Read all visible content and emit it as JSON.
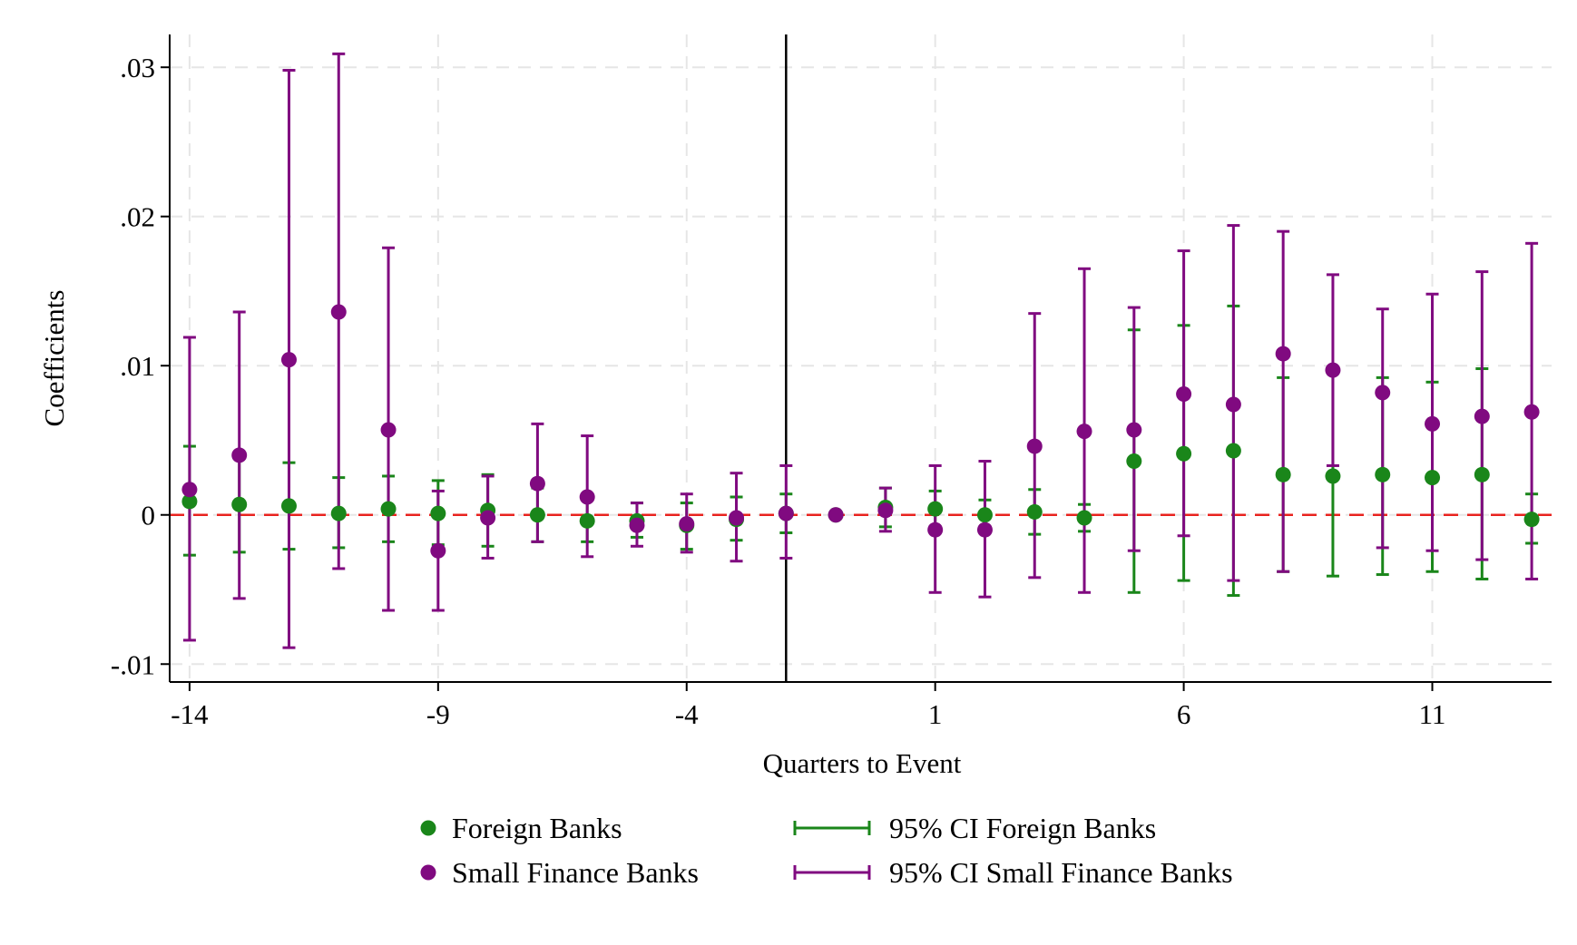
{
  "chart_data": {
    "type": "scatter",
    "xlabel": "Quarters to Event",
    "ylabel": "Coefficients",
    "xlim": [
      -14.4,
      13.4
    ],
    "ylim": [
      -0.0112,
      0.0322
    ],
    "x_ticks": [
      -14,
      -9,
      -4,
      1,
      6,
      11
    ],
    "x_tick_labels": [
      "-14",
      "-9",
      "-4",
      "1",
      "6",
      "11"
    ],
    "y_ticks": [
      -0.01,
      0,
      0.01,
      0.02,
      0.03
    ],
    "y_tick_labels": [
      "-.01",
      "0",
      ".01",
      ".02",
      ".03"
    ],
    "grid": true,
    "event_line_x": -2,
    "reference_line_y": 0,
    "legend_position": "bottom",
    "x": [
      -14,
      -13,
      -12,
      -11,
      -10,
      -9,
      -8,
      -7,
      -6,
      -5,
      -4,
      -3,
      -2,
      -1,
      0,
      1,
      2,
      3,
      4,
      5,
      6,
      7,
      8,
      9,
      10,
      11,
      12,
      13
    ],
    "series": [
      {
        "name": "Foreign Banks",
        "ci_name": "95% CI Foreign Banks",
        "color": "#1a861a",
        "values": [
          0.0009,
          0.0007,
          0.0006,
          0.0001,
          0.0004,
          0.0001,
          0.0003,
          0.0,
          -0.0004,
          -0.0004,
          -0.0007,
          -0.0003,
          0.0001,
          0.0,
          0.0005,
          0.0004,
          0.0,
          0.0002,
          -0.0002,
          0.0036,
          0.0041,
          0.0043,
          0.0027,
          0.0026,
          0.0027,
          0.0025,
          0.0027,
          -0.0003
        ],
        "ci_low": [
          -0.0027,
          -0.0025,
          -0.0023,
          -0.0022,
          -0.0018,
          -0.002,
          -0.0021,
          -0.0018,
          -0.0018,
          -0.0015,
          -0.0023,
          -0.0017,
          -0.0012,
          0.0,
          -0.0008,
          -0.0008,
          -0.0009,
          -0.0013,
          -0.0011,
          -0.0052,
          -0.0044,
          -0.0054,
          -0.0038,
          -0.0041,
          -0.004,
          -0.0038,
          -0.0043,
          -0.0019
        ],
        "ci_high": [
          0.0046,
          0.0038,
          0.0035,
          0.0025,
          0.0026,
          0.0023,
          0.0027,
          0.0018,
          0.001,
          0.0008,
          0.0008,
          0.0012,
          0.0014,
          0.0,
          0.0018,
          0.0016,
          0.001,
          0.0017,
          0.0007,
          0.0124,
          0.0127,
          0.014,
          0.0092,
          0.0095,
          0.0092,
          0.0089,
          0.0098,
          0.0014
        ]
      },
      {
        "name": "Small Finance Banks",
        "ci_name": "95% CI Small Finance Banks",
        "color": "#800a80",
        "values": [
          0.0017,
          0.004,
          0.0104,
          0.0136,
          0.0057,
          -0.0024,
          -0.0002,
          0.0021,
          0.0012,
          -0.0007,
          -0.0006,
          -0.0002,
          0.0001,
          0.0,
          0.0003,
          -0.001,
          -0.001,
          0.0046,
          0.0056,
          0.0057,
          0.0081,
          0.0074,
          0.0108,
          0.0097,
          0.0082,
          0.0061,
          0.0066,
          0.0069
        ],
        "ci_low": [
          -0.0084,
          -0.0056,
          -0.0089,
          -0.0036,
          -0.0064,
          -0.0064,
          -0.0029,
          -0.0018,
          -0.0028,
          -0.0021,
          -0.0025,
          -0.0031,
          -0.0029,
          0.0,
          -0.0011,
          -0.0052,
          -0.0055,
          -0.0042,
          -0.0052,
          -0.0024,
          -0.0014,
          -0.0044,
          -0.0038,
          0.0033,
          -0.0022,
          -0.0024,
          -0.003,
          -0.0043
        ],
        "ci_high": [
          0.0119,
          0.0136,
          0.0298,
          0.0309,
          0.0179,
          0.0016,
          0.0026,
          0.0061,
          0.0053,
          0.0008,
          0.0014,
          0.0028,
          0.0033,
          0.0,
          0.0018,
          0.0033,
          0.0036,
          0.0135,
          0.0165,
          0.0139,
          0.0177,
          0.0194,
          0.019,
          0.0161,
          0.0138,
          0.0148,
          0.0163,
          0.0182
        ]
      }
    ]
  }
}
